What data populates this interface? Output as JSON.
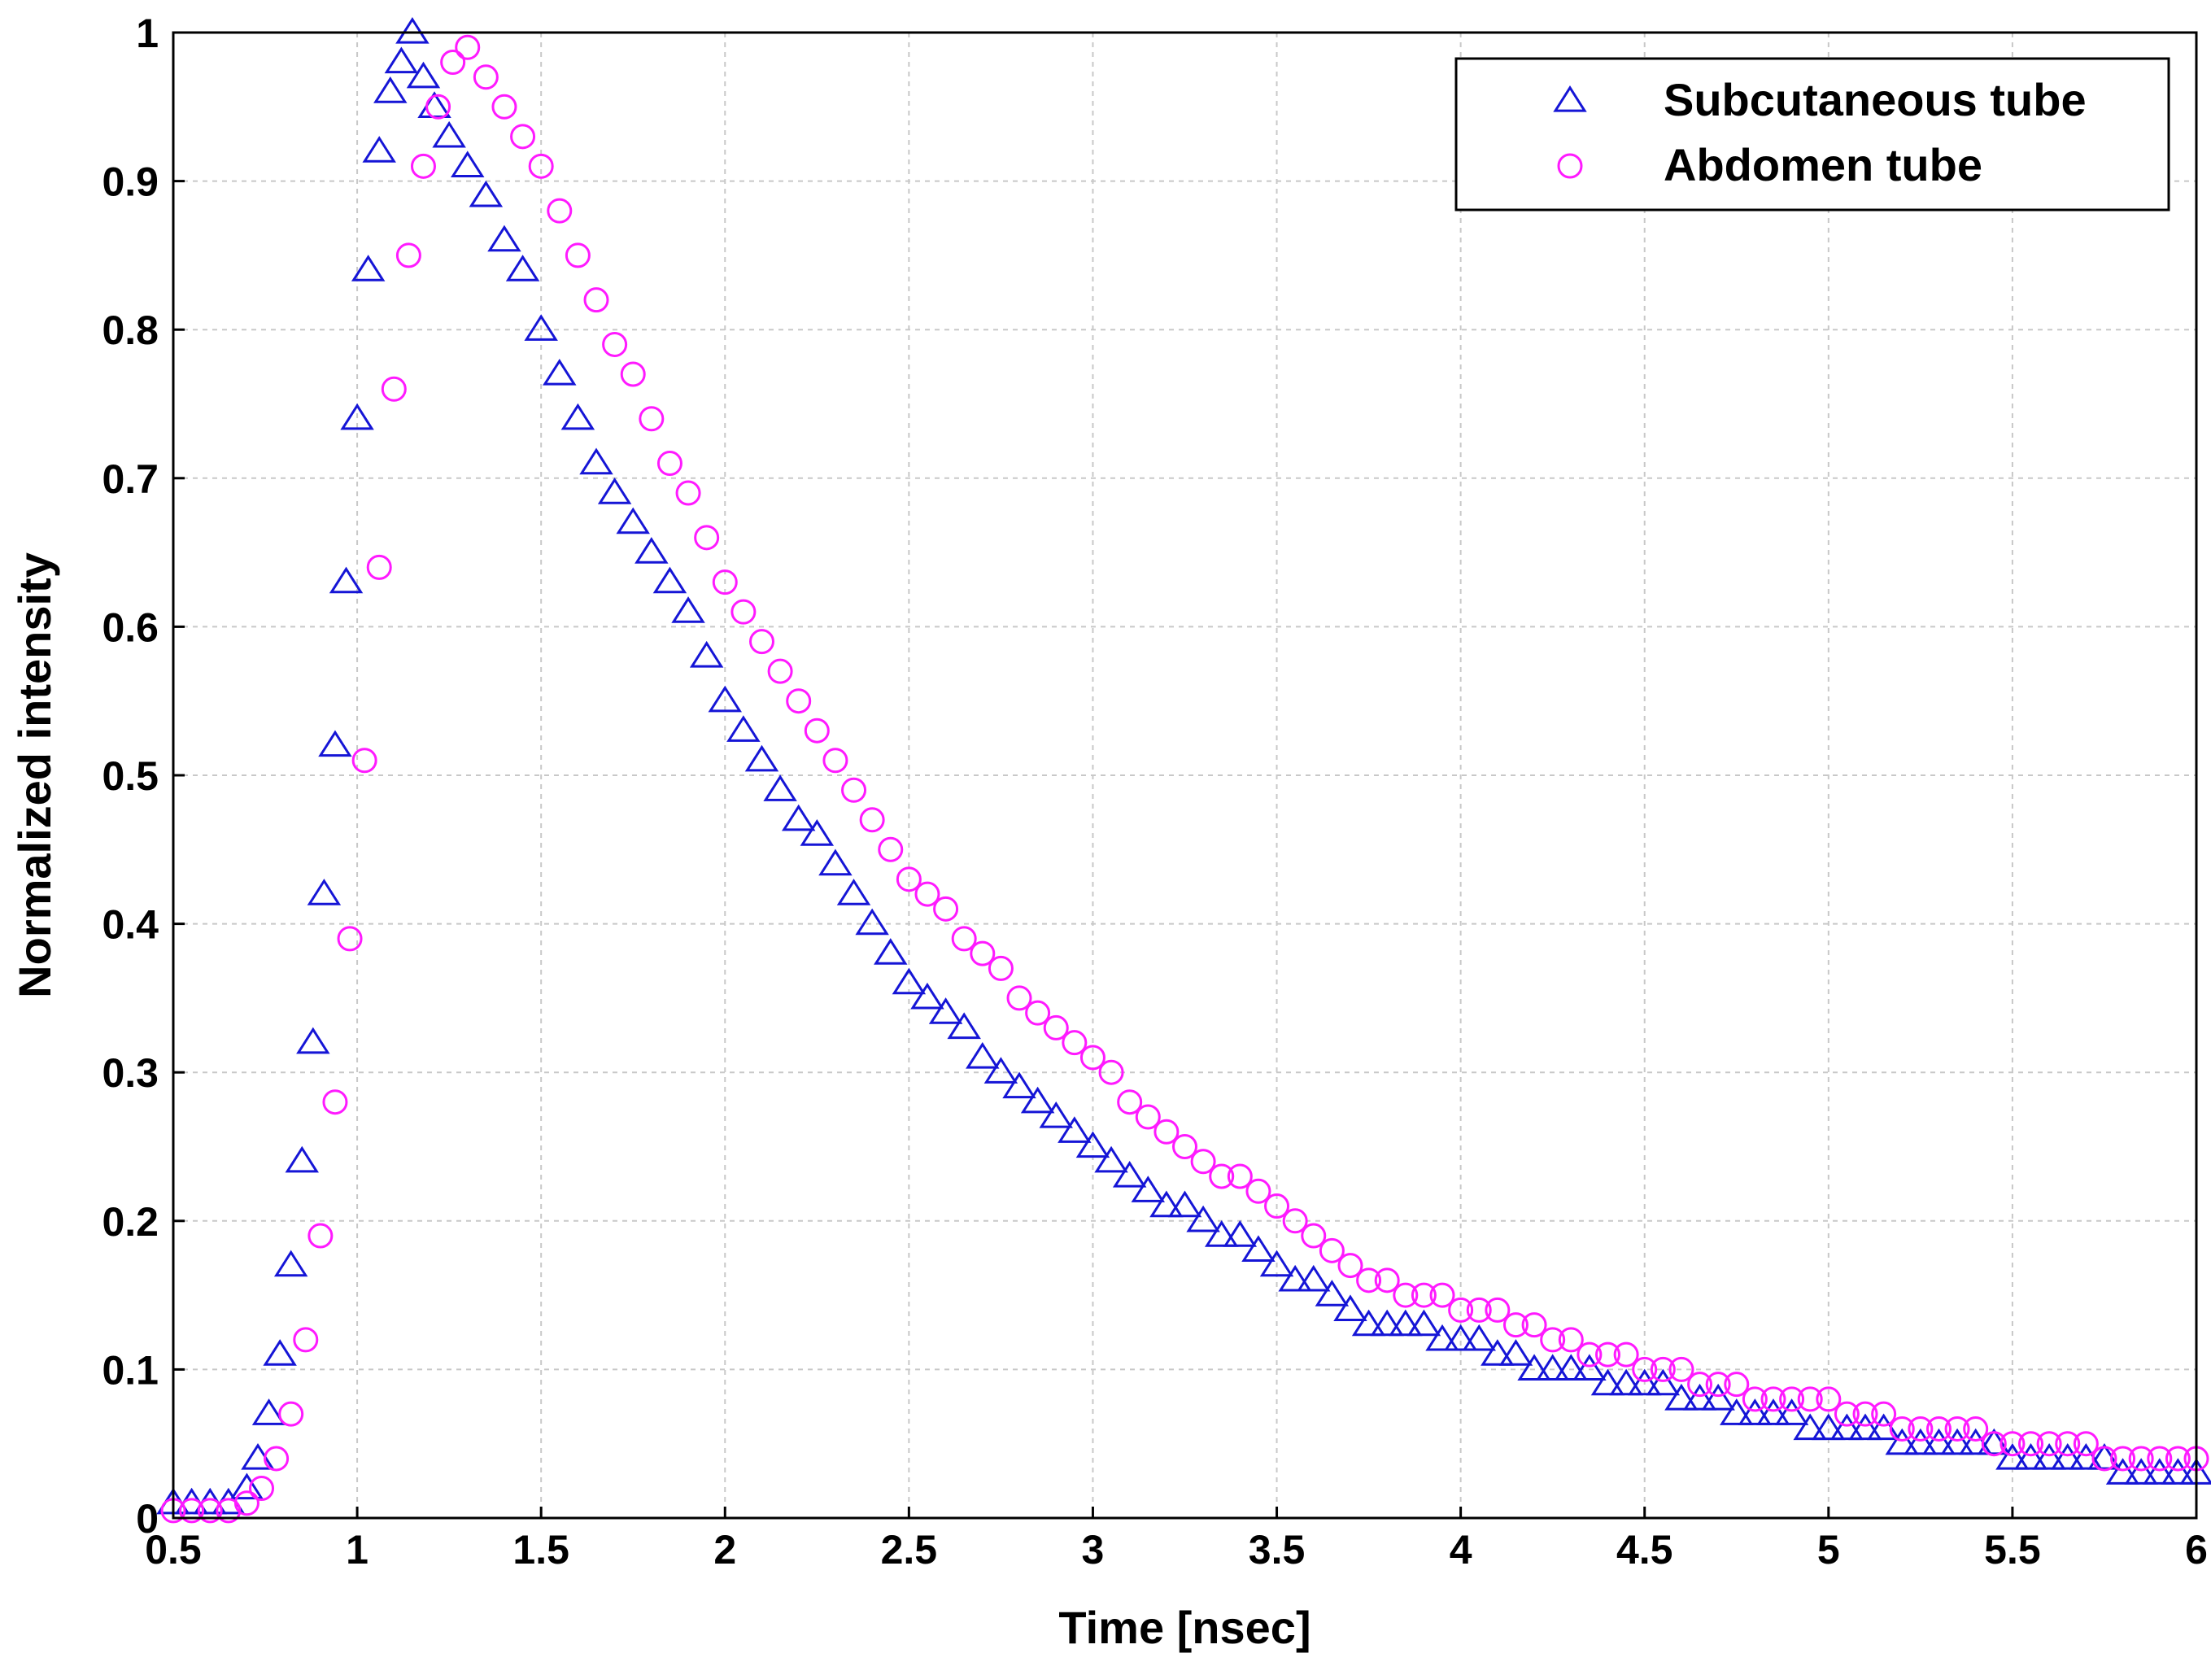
{
  "chart_data": {
    "type": "scatter",
    "title": "",
    "xlabel": "Time [nsec]",
    "ylabel": "Normalized intensity",
    "xlim": [
      0.5,
      6
    ],
    "ylim": [
      0,
      1
    ],
    "grid": true,
    "legend_position": "top-right",
    "xticks": [
      "0.5",
      "1",
      "1.5",
      "2",
      "2.5",
      "3",
      "3.5",
      "4",
      "4.5",
      "5",
      "5.5",
      "6"
    ],
    "yticks": [
      "0",
      "0.1",
      "0.2",
      "0.3",
      "0.4",
      "0.5",
      "0.6",
      "0.7",
      "0.8",
      "0.9",
      "1"
    ],
    "series": [
      {
        "name": "Subcutaneous tube",
        "marker": "triangle",
        "color": "#1515d6",
        "x": [
          0.5,
          0.55,
          0.6,
          0.65,
          0.7,
          0.73,
          0.76,
          0.79,
          0.82,
          0.85,
          0.88,
          0.91,
          0.94,
          0.97,
          1.0,
          1.03,
          1.06,
          1.09,
          1.12,
          1.15,
          1.18,
          1.21,
          1.25,
          1.3,
          1.35,
          1.4,
          1.45,
          1.5,
          1.55,
          1.6,
          1.65,
          1.7,
          1.75,
          1.8,
          1.85,
          1.9,
          1.95,
          2.0,
          2.05,
          2.1,
          2.15,
          2.2,
          2.25,
          2.3,
          2.35,
          2.4,
          2.45,
          2.5,
          2.55,
          2.6,
          2.65,
          2.7,
          2.75,
          2.8,
          2.85,
          2.9,
          2.95,
          3.0,
          3.05,
          3.1,
          3.15,
          3.2,
          3.25,
          3.3,
          3.35,
          3.4,
          3.45,
          3.5,
          3.55,
          3.6,
          3.65,
          3.7,
          3.75,
          3.8,
          3.85,
          3.9,
          3.95,
          4.0,
          4.05,
          4.1,
          4.15,
          4.2,
          4.25,
          4.3,
          4.35,
          4.4,
          4.45,
          4.5,
          4.55,
          4.6,
          4.65,
          4.7,
          4.75,
          4.8,
          4.85,
          4.9,
          4.95,
          5.0,
          5.05,
          5.1,
          5.15,
          5.2,
          5.25,
          5.3,
          5.35,
          5.4,
          5.45,
          5.5,
          5.55,
          5.6,
          5.65,
          5.7,
          5.75,
          5.8,
          5.85,
          5.9,
          5.95,
          6.0
        ],
        "y": [
          0.01,
          0.01,
          0.01,
          0.01,
          0.02,
          0.04,
          0.07,
          0.11,
          0.17,
          0.24,
          0.32,
          0.42,
          0.52,
          0.63,
          0.74,
          0.84,
          0.92,
          0.96,
          0.98,
          1.0,
          0.97,
          0.95,
          0.93,
          0.91,
          0.89,
          0.86,
          0.84,
          0.8,
          0.77,
          0.74,
          0.71,
          0.69,
          0.67,
          0.65,
          0.63,
          0.61,
          0.58,
          0.55,
          0.53,
          0.51,
          0.49,
          0.47,
          0.46,
          0.44,
          0.42,
          0.4,
          0.38,
          0.36,
          0.35,
          0.34,
          0.33,
          0.31,
          0.3,
          0.29,
          0.28,
          0.27,
          0.26,
          0.25,
          0.24,
          0.23,
          0.22,
          0.21,
          0.21,
          0.2,
          0.19,
          0.19,
          0.18,
          0.17,
          0.16,
          0.16,
          0.15,
          0.14,
          0.13,
          0.13,
          0.13,
          0.13,
          0.12,
          0.12,
          0.12,
          0.11,
          0.11,
          0.1,
          0.1,
          0.1,
          0.1,
          0.09,
          0.09,
          0.09,
          0.09,
          0.08,
          0.08,
          0.08,
          0.07,
          0.07,
          0.07,
          0.07,
          0.06,
          0.06,
          0.06,
          0.06,
          0.06,
          0.05,
          0.05,
          0.05,
          0.05,
          0.05,
          0.05,
          0.04,
          0.04,
          0.04,
          0.04,
          0.04,
          0.04,
          0.03,
          0.03,
          0.03,
          0.03,
          0.03
        ]
      },
      {
        "name": "Abdomen tube",
        "marker": "circle",
        "color": "#ff1aff",
        "x": [
          0.5,
          0.55,
          0.6,
          0.65,
          0.7,
          0.74,
          0.78,
          0.82,
          0.86,
          0.9,
          0.94,
          0.98,
          1.02,
          1.06,
          1.1,
          1.14,
          1.18,
          1.22,
          1.26,
          1.3,
          1.35,
          1.4,
          1.45,
          1.5,
          1.55,
          1.6,
          1.65,
          1.7,
          1.75,
          1.8,
          1.85,
          1.9,
          1.95,
          2.0,
          2.05,
          2.1,
          2.15,
          2.2,
          2.25,
          2.3,
          2.35,
          2.4,
          2.45,
          2.5,
          2.55,
          2.6,
          2.65,
          2.7,
          2.75,
          2.8,
          2.85,
          2.9,
          2.95,
          3.0,
          3.05,
          3.1,
          3.15,
          3.2,
          3.25,
          3.3,
          3.35,
          3.4,
          3.45,
          3.5,
          3.55,
          3.6,
          3.65,
          3.7,
          3.75,
          3.8,
          3.85,
          3.9,
          3.95,
          4.0,
          4.05,
          4.1,
          4.15,
          4.2,
          4.25,
          4.3,
          4.35,
          4.4,
          4.45,
          4.5,
          4.55,
          4.6,
          4.65,
          4.7,
          4.75,
          4.8,
          4.85,
          4.9,
          4.95,
          5.0,
          5.05,
          5.1,
          5.15,
          5.2,
          5.25,
          5.3,
          5.35,
          5.4,
          5.45,
          5.5,
          5.55,
          5.6,
          5.65,
          5.7,
          5.75,
          5.8,
          5.85,
          5.9,
          5.95,
          6.0
        ],
        "y": [
          0.005,
          0.005,
          0.005,
          0.005,
          0.01,
          0.02,
          0.04,
          0.07,
          0.12,
          0.19,
          0.28,
          0.39,
          0.51,
          0.64,
          0.76,
          0.85,
          0.91,
          0.95,
          0.98,
          0.99,
          0.97,
          0.95,
          0.93,
          0.91,
          0.88,
          0.85,
          0.82,
          0.79,
          0.77,
          0.74,
          0.71,
          0.69,
          0.66,
          0.63,
          0.61,
          0.59,
          0.57,
          0.55,
          0.53,
          0.51,
          0.49,
          0.47,
          0.45,
          0.43,
          0.42,
          0.41,
          0.39,
          0.38,
          0.37,
          0.35,
          0.34,
          0.33,
          0.32,
          0.31,
          0.3,
          0.28,
          0.27,
          0.26,
          0.25,
          0.24,
          0.23,
          0.23,
          0.22,
          0.21,
          0.2,
          0.19,
          0.18,
          0.17,
          0.16,
          0.16,
          0.15,
          0.15,
          0.15,
          0.14,
          0.14,
          0.14,
          0.13,
          0.13,
          0.12,
          0.12,
          0.11,
          0.11,
          0.11,
          0.1,
          0.1,
          0.1,
          0.09,
          0.09,
          0.09,
          0.08,
          0.08,
          0.08,
          0.08,
          0.08,
          0.07,
          0.07,
          0.07,
          0.06,
          0.06,
          0.06,
          0.06,
          0.06,
          0.05,
          0.05,
          0.05,
          0.05,
          0.05,
          0.05,
          0.04,
          0.04,
          0.04,
          0.04,
          0.04,
          0.04
        ]
      }
    ]
  }
}
